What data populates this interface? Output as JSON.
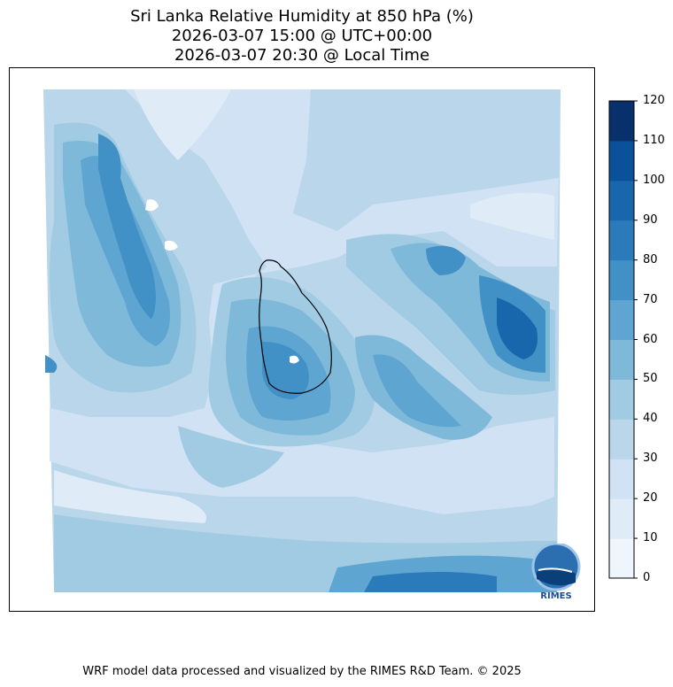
{
  "title": {
    "line1": "Sri Lanka Relative Humidity at 850 hPa (%)",
    "line2": "2026-03-07 15:00 @ UTC+00:00",
    "line3": "2026-03-07 20:30 @ Local Time"
  },
  "chart_data": {
    "type": "heatmap",
    "title": "Sri Lanka Relative Humidity at 850 hPa (%)",
    "variable": "Relative Humidity",
    "units": "%",
    "region": "Sri Lanka",
    "colorbar": {
      "levels": [
        0,
        10,
        20,
        30,
        40,
        50,
        60,
        70,
        80,
        90,
        100,
        110,
        120
      ],
      "tick_labels": [
        "0",
        "10",
        "20",
        "30",
        "40",
        "50",
        "60",
        "70",
        "80",
        "90",
        "100",
        "110",
        "120"
      ],
      "colors": [
        "#eff5fc",
        "#dfebf7",
        "#d0e2f3",
        "#bad6ea",
        "#a0cbe2",
        "#7fb9da",
        "#5fa5d1",
        "#4191c6",
        "#2b7bba",
        "#1866ac",
        "#09519a",
        "#08306b"
      ],
      "range": [
        0,
        120
      ]
    }
  },
  "logo": {
    "text": "RIMES"
  },
  "footer": "WRF model data processed and visualized by the RIMES R&D Team. © 2025"
}
